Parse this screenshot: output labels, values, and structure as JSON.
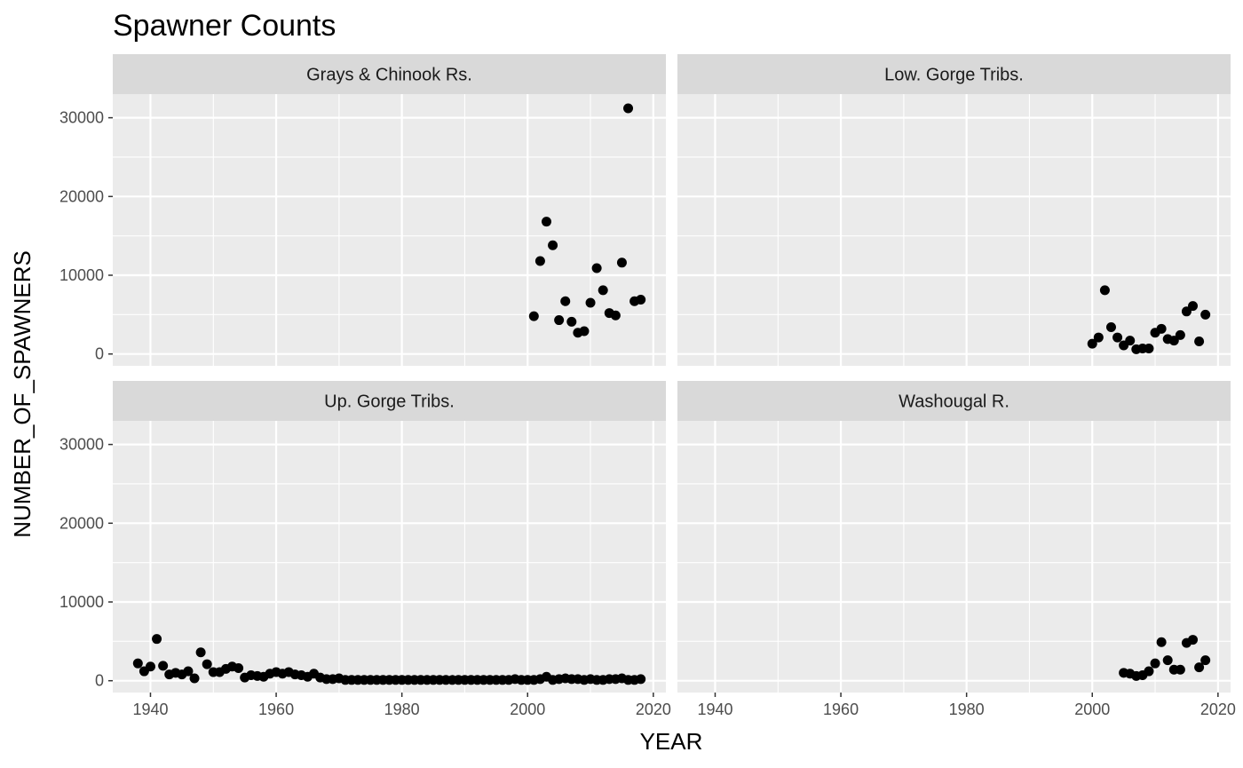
{
  "chart_data": {
    "type": "scatter",
    "title": "Spawner Counts",
    "xlabel": "YEAR",
    "ylabel": "NUMBER_OF_SPAWNERS",
    "xlim": [
      1934,
      2022
    ],
    "ylim": [
      -1500,
      33000
    ],
    "x_ticks": [
      1940,
      1960,
      1980,
      2000,
      2020
    ],
    "y_ticks": [
      0,
      10000,
      20000,
      30000
    ],
    "grid": true,
    "facet_layout": "2x2",
    "colors": {
      "panel_bg": "#ebebeb",
      "strip_bg": "#d9d9d9",
      "grid": "#ffffff",
      "point": "#000000"
    },
    "panels": [
      {
        "label": "Grays & Chinook Rs.",
        "points": [
          [
            2001,
            4800
          ],
          [
            2002,
            11800
          ],
          [
            2003,
            16800
          ],
          [
            2004,
            13800
          ],
          [
            2005,
            4300
          ],
          [
            2006,
            6700
          ],
          [
            2007,
            4100
          ],
          [
            2008,
            2700
          ],
          [
            2009,
            2900
          ],
          [
            2010,
            6500
          ],
          [
            2011,
            10900
          ],
          [
            2012,
            8100
          ],
          [
            2013,
            5200
          ],
          [
            2014,
            4900
          ],
          [
            2015,
            11600
          ],
          [
            2016,
            31200
          ],
          [
            2017,
            6700
          ],
          [
            2018,
            6900
          ]
        ]
      },
      {
        "label": "Low. Gorge Tribs.",
        "points": [
          [
            2000,
            1300
          ],
          [
            2001,
            2100
          ],
          [
            2002,
            8100
          ],
          [
            2003,
            3400
          ],
          [
            2004,
            2100
          ],
          [
            2005,
            1100
          ],
          [
            2006,
            1700
          ],
          [
            2007,
            600
          ],
          [
            2008,
            700
          ],
          [
            2009,
            700
          ],
          [
            2010,
            2700
          ],
          [
            2011,
            3200
          ],
          [
            2012,
            1900
          ],
          [
            2013,
            1700
          ],
          [
            2014,
            2400
          ],
          [
            2015,
            5400
          ],
          [
            2016,
            6100
          ],
          [
            2017,
            1600
          ],
          [
            2018,
            5000
          ]
        ]
      },
      {
        "label": "Up. Gorge Tribs.",
        "points": [
          [
            1938,
            2200
          ],
          [
            1939,
            1200
          ],
          [
            1940,
            1800
          ],
          [
            1941,
            5300
          ],
          [
            1942,
            1900
          ],
          [
            1943,
            800
          ],
          [
            1944,
            1000
          ],
          [
            1945,
            800
          ],
          [
            1946,
            1200
          ],
          [
            1947,
            300
          ],
          [
            1948,
            3600
          ],
          [
            1949,
            2100
          ],
          [
            1950,
            1100
          ],
          [
            1951,
            1100
          ],
          [
            1952,
            1500
          ],
          [
            1953,
            1800
          ],
          [
            1954,
            1600
          ],
          [
            1955,
            400
          ],
          [
            1956,
            700
          ],
          [
            1957,
            600
          ],
          [
            1958,
            500
          ],
          [
            1959,
            900
          ],
          [
            1960,
            1100
          ],
          [
            1961,
            900
          ],
          [
            1962,
            1100
          ],
          [
            1963,
            800
          ],
          [
            1964,
            700
          ],
          [
            1965,
            500
          ],
          [
            1966,
            900
          ],
          [
            1967,
            400
          ],
          [
            1968,
            200
          ],
          [
            1969,
            200
          ],
          [
            1970,
            300
          ],
          [
            1971,
            100
          ],
          [
            1972,
            100
          ],
          [
            1973,
            100
          ],
          [
            1974,
            100
          ],
          [
            1975,
            100
          ],
          [
            1976,
            100
          ],
          [
            1977,
            100
          ],
          [
            1978,
            100
          ],
          [
            1979,
            100
          ],
          [
            1980,
            100
          ],
          [
            1981,
            100
          ],
          [
            1982,
            100
          ],
          [
            1983,
            100
          ],
          [
            1984,
            100
          ],
          [
            1985,
            100
          ],
          [
            1986,
            100
          ],
          [
            1987,
            100
          ],
          [
            1988,
            100
          ],
          [
            1989,
            100
          ],
          [
            1990,
            100
          ],
          [
            1991,
            100
          ],
          [
            1992,
            100
          ],
          [
            1993,
            100
          ],
          [
            1994,
            100
          ],
          [
            1995,
            100
          ],
          [
            1996,
            100
          ],
          [
            1997,
            100
          ],
          [
            1998,
            200
          ],
          [
            1999,
            100
          ],
          [
            2000,
            100
          ],
          [
            2001,
            100
          ],
          [
            2002,
            200
          ],
          [
            2003,
            500
          ],
          [
            2004,
            100
          ],
          [
            2005,
            200
          ],
          [
            2006,
            300
          ],
          [
            2007,
            200
          ],
          [
            2008,
            200
          ],
          [
            2009,
            100
          ],
          [
            2010,
            200
          ],
          [
            2011,
            100
          ],
          [
            2012,
            100
          ],
          [
            2013,
            200
          ],
          [
            2014,
            200
          ],
          [
            2015,
            300
          ],
          [
            2016,
            100
          ],
          [
            2017,
            100
          ],
          [
            2018,
            200
          ]
        ]
      },
      {
        "label": "Washougal R.",
        "points": [
          [
            2005,
            1000
          ],
          [
            2006,
            900
          ],
          [
            2007,
            600
          ],
          [
            2008,
            700
          ],
          [
            2009,
            1200
          ],
          [
            2010,
            2200
          ],
          [
            2011,
            4900
          ],
          [
            2012,
            2600
          ],
          [
            2013,
            1400
          ],
          [
            2014,
            1400
          ],
          [
            2015,
            4800
          ],
          [
            2016,
            5200
          ],
          [
            2017,
            1700
          ],
          [
            2018,
            2600
          ]
        ]
      }
    ]
  }
}
